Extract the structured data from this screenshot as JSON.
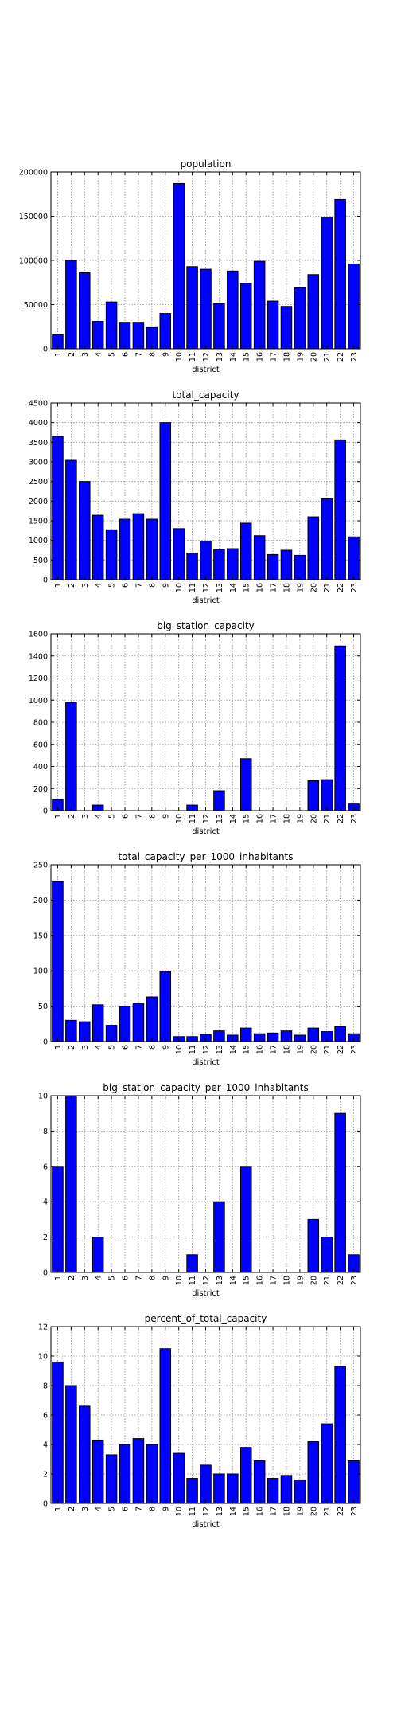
{
  "chart_data": [
    {
      "type": "bar",
      "title": "population",
      "xlabel": "district",
      "ylabel": "",
      "categories": [
        "1",
        "2",
        "3",
        "4",
        "5",
        "6",
        "7",
        "8",
        "9",
        "10",
        "11",
        "12",
        "13",
        "14",
        "15",
        "16",
        "17",
        "18",
        "19",
        "20",
        "21",
        "22",
        "23"
      ],
      "values": [
        16000,
        100000,
        86000,
        31000,
        53000,
        30000,
        30000,
        24000,
        40000,
        187000,
        93000,
        90000,
        51000,
        88000,
        74000,
        99000,
        54000,
        48000,
        69000,
        84000,
        149000,
        169000,
        96000
      ],
      "ylim": [
        0,
        200000
      ],
      "yticks": [
        0,
        50000,
        100000,
        150000,
        200000
      ],
      "grid": true,
      "color": "#0000ff"
    },
    {
      "type": "bar",
      "title": "total_capacity",
      "xlabel": "district",
      "ylabel": "",
      "categories": [
        "1",
        "2",
        "3",
        "4",
        "5",
        "6",
        "7",
        "8",
        "9",
        "10",
        "11",
        "12",
        "13",
        "14",
        "15",
        "16",
        "17",
        "18",
        "19",
        "20",
        "21",
        "22",
        "23"
      ],
      "values": [
        3650,
        3040,
        2500,
        1640,
        1270,
        1540,
        1680,
        1540,
        4000,
        1300,
        680,
        980,
        770,
        790,
        1440,
        1120,
        640,
        750,
        620,
        1600,
        2060,
        3560,
        1090
      ],
      "ylim": [
        0,
        4500
      ],
      "yticks": [
        0,
        500,
        1000,
        1500,
        2000,
        2500,
        3000,
        3500,
        4000,
        4500
      ],
      "grid": true,
      "color": "#0000ff"
    },
    {
      "type": "bar",
      "title": "big_station_capacity",
      "xlabel": "district",
      "ylabel": "",
      "categories": [
        "1",
        "2",
        "3",
        "4",
        "5",
        "6",
        "7",
        "8",
        "9",
        "10",
        "11",
        "12",
        "13",
        "14",
        "15",
        "16",
        "17",
        "18",
        "19",
        "20",
        "21",
        "22",
        "23"
      ],
      "values": [
        100,
        980,
        0,
        50,
        0,
        0,
        0,
        0,
        0,
        0,
        50,
        0,
        180,
        0,
        470,
        0,
        0,
        0,
        0,
        270,
        280,
        1490,
        60
      ],
      "ylim": [
        0,
        1600
      ],
      "yticks": [
        0,
        200,
        400,
        600,
        800,
        1000,
        1200,
        1400,
        1600
      ],
      "grid": true,
      "color": "#0000ff"
    },
    {
      "type": "bar",
      "title": "total_capacity_per_1000_inhabitants",
      "xlabel": "district",
      "ylabel": "",
      "categories": [
        "1",
        "2",
        "3",
        "4",
        "5",
        "6",
        "7",
        "8",
        "9",
        "10",
        "11",
        "12",
        "13",
        "14",
        "15",
        "16",
        "17",
        "18",
        "19",
        "20",
        "21",
        "22",
        "23"
      ],
      "values": [
        226,
        30,
        28,
        52,
        23,
        50,
        54,
        63,
        99,
        7,
        7,
        10,
        15,
        9,
        19,
        11,
        12,
        15,
        9,
        19,
        14,
        21,
        11
      ],
      "ylim": [
        0,
        250
      ],
      "yticks": [
        0,
        50,
        100,
        150,
        200,
        250
      ],
      "grid": true,
      "color": "#0000ff"
    },
    {
      "type": "bar",
      "title": "big_station_capacity_per_1000_inhabitants",
      "xlabel": "district",
      "ylabel": "",
      "categories": [
        "1",
        "2",
        "3",
        "4",
        "5",
        "6",
        "7",
        "8",
        "9",
        "10",
        "11",
        "12",
        "13",
        "14",
        "15",
        "16",
        "17",
        "18",
        "19",
        "20",
        "21",
        "22",
        "23"
      ],
      "values": [
        6,
        10,
        0,
        2,
        0,
        0,
        0,
        0,
        0,
        0,
        1,
        0,
        4,
        0,
        6,
        0,
        0,
        0,
        0,
        3,
        2,
        9,
        1
      ],
      "ylim": [
        0,
        10
      ],
      "yticks": [
        0,
        2,
        4,
        6,
        8,
        10
      ],
      "grid": true,
      "color": "#0000ff"
    },
    {
      "type": "bar",
      "title": "percent_of_total_capacity",
      "xlabel": "district",
      "ylabel": "",
      "categories": [
        "1",
        "2",
        "3",
        "4",
        "5",
        "6",
        "7",
        "8",
        "9",
        "10",
        "11",
        "12",
        "13",
        "14",
        "15",
        "16",
        "17",
        "18",
        "19",
        "20",
        "21",
        "22",
        "23"
      ],
      "values": [
        9.6,
        8.0,
        6.6,
        4.3,
        3.3,
        4.0,
        4.4,
        4.0,
        10.5,
        3.4,
        1.7,
        2.6,
        2.0,
        2.0,
        3.8,
        2.9,
        1.7,
        1.9,
        1.6,
        4.2,
        5.4,
        9.3,
        2.9
      ],
      "ylim": [
        0,
        12
      ],
      "yticks": [
        0,
        2,
        4,
        6,
        8,
        10,
        12
      ],
      "grid": true,
      "color": "#0000ff"
    }
  ]
}
